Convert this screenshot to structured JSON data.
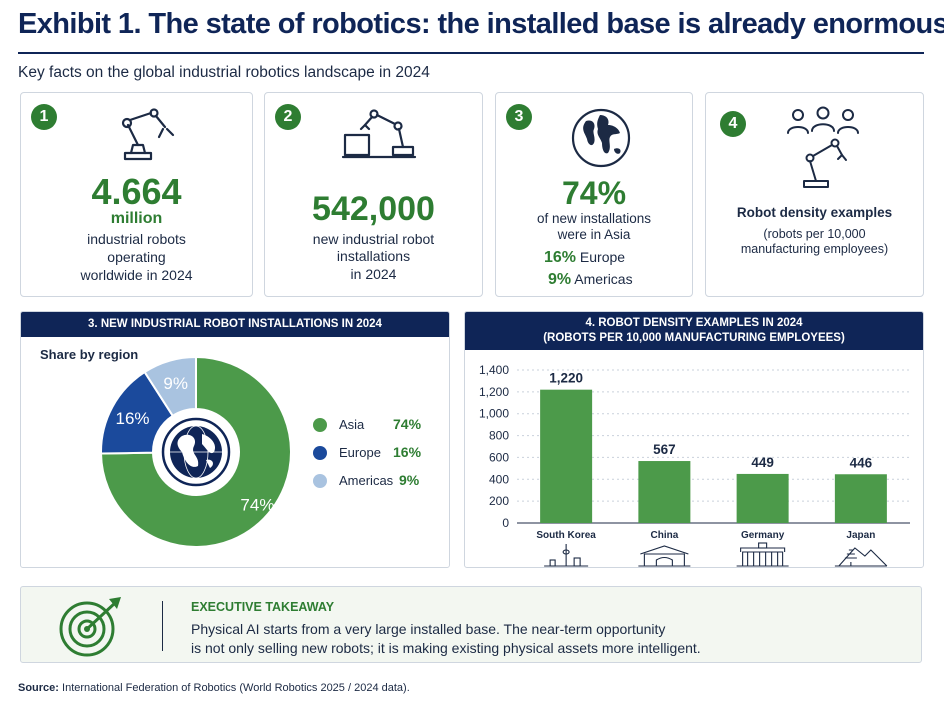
{
  "header": {
    "title": "Exhibit 1. The state of robotics: the installed base is already enormous",
    "subtitle": "Key facts on the global industrial robotics landscape in 2024"
  },
  "cards": [
    {
      "number": "1",
      "value": "4.664",
      "unit": "million",
      "lines": [
        "industrial robots",
        "operating",
        "worldwide in 2024"
      ]
    },
    {
      "number": "2",
      "value": "542,000",
      "lines": [
        "new industrial robot",
        "installations",
        "in 2024"
      ]
    },
    {
      "number": "3",
      "value": "74%",
      "lines": [
        "of new installations",
        "were in Asia"
      ],
      "extra": [
        {
          "pct": "16%",
          "label": "Europe"
        },
        {
          "pct": "9%",
          "label": "Americas"
        }
      ]
    },
    {
      "number": "4",
      "heading": "Robot density examples",
      "lines": [
        "(robots per 10,000",
        "manufacturing employees)"
      ]
    }
  ],
  "colors": {
    "navy": "#0f2557",
    "green": "#2e7d32",
    "asia": "#4c9a4a",
    "europe": "#1b4a9c",
    "americas": "#a9c3e0",
    "bar": "#4c9a4a"
  },
  "chart_data": [
    {
      "type": "pie",
      "title": "3. NEW INDUSTRIAL ROBOT INSTALLATIONS IN 2024",
      "subtitle": "Share by region",
      "donut": true,
      "labels": [
        "Asia",
        "Europe",
        "Americas"
      ],
      "values": [
        74,
        16,
        9
      ],
      "value_labels": [
        "74%",
        "16%",
        "9%"
      ],
      "colors": [
        "#4c9a4a",
        "#1b4a9c",
        "#a9c3e0"
      ],
      "legend": "right",
      "center_icon": "globe-icon"
    },
    {
      "type": "bar",
      "title": "4. ROBOT DENSITY EXAMPLES IN 2024",
      "title_line2": "(ROBOTS PER 10,000 MANUFACTURING EMPLOYEES)",
      "categories": [
        "South Korea",
        "China",
        "Germany",
        "Japan"
      ],
      "values": [
        1220,
        567,
        449,
        446
      ],
      "value_labels": [
        "1,220",
        "567",
        "449",
        "446"
      ],
      "ylim": [
        0,
        1400
      ],
      "yticks": [
        "0",
        "200",
        "400",
        "600",
        "800",
        "1,000",
        "1,200",
        "1,400"
      ],
      "ytick_values": [
        0,
        200,
        400,
        600,
        800,
        1000,
        1200,
        1400
      ],
      "grid": true,
      "landmark_icons": [
        "seoul-tower-icon",
        "china-gate-icon",
        "brandenburg-gate-icon",
        "japan-pagoda-icon"
      ]
    }
  ],
  "takeaway": {
    "heading": "EXECUTIVE TAKEAWAY",
    "line1": "Physical AI starts from a very large installed base. The near-term opportunity",
    "line2": "is not only selling new robots; it is making existing physical assets more intelligent.",
    "icon": "target-icon"
  },
  "source": {
    "label": "Source:",
    "text": " International Federation of Robotics (World Robotics 2025 / 2024 data)."
  }
}
